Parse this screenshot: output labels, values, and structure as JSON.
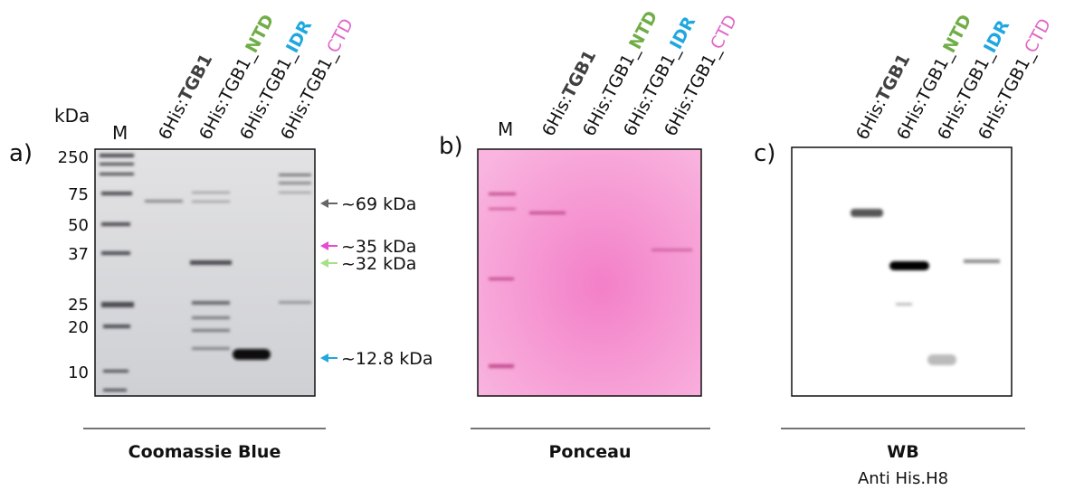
{
  "panels": [
    {
      "letter": "a)",
      "units": "kDa",
      "marker_lane": "M",
      "markers": [
        "250",
        "75",
        "50",
        "37",
        "25",
        "20",
        "10"
      ],
      "lanes": [
        {
          "prefix": "6His:",
          "name": "TGB1"
        },
        {
          "prefix": "6His:TGB1_",
          "name": "NTD"
        },
        {
          "prefix": "6His:TGB1_",
          "name": "IDR"
        },
        {
          "prefix": "6His:TGB1_",
          "name": "CTD"
        }
      ],
      "annotations": [
        "~69 kDa",
        "~35 kDa",
        "~32 kDa",
        "~12.8 kDa"
      ],
      "caption": "Coomassie Blue"
    },
    {
      "letter": "b)",
      "marker_lane": "M",
      "lanes": [
        {
          "prefix": "6His:",
          "name": "TGB1"
        },
        {
          "prefix": "6His:TGB1_",
          "name": "NTD"
        },
        {
          "prefix": "6His:TGB1_",
          "name": "IDR"
        },
        {
          "prefix": "6His:TGB1_",
          "name": "CTD"
        }
      ],
      "caption": "Ponceau"
    },
    {
      "letter": "c)",
      "lanes": [
        {
          "prefix": "6His:",
          "name": "TGB1"
        },
        {
          "prefix": "6His:TGB1_",
          "name": "NTD"
        },
        {
          "prefix": "6His:TGB1_",
          "name": "IDR"
        },
        {
          "prefix": "6His:TGB1_",
          "name": "CTD"
        }
      ],
      "caption": "WB",
      "subcaption": "Anti His.H8"
    }
  ]
}
